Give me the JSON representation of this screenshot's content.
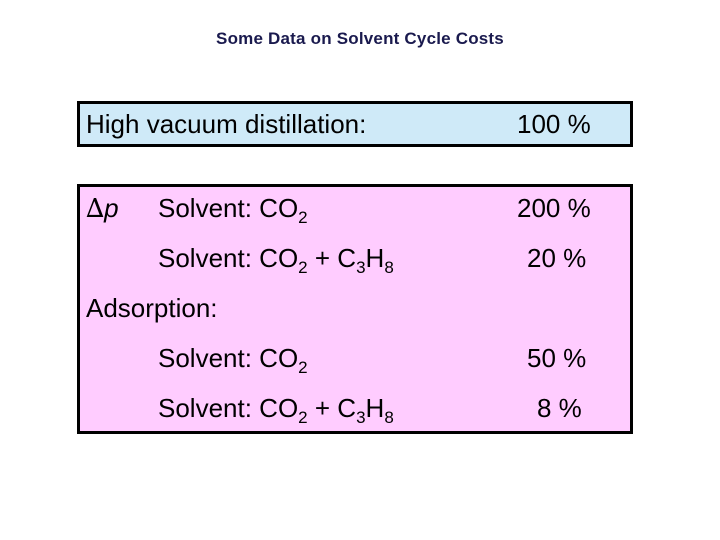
{
  "title": "Some Data on Solvent Cycle Costs",
  "colors": {
    "top_box_fill": "#cfeaf8",
    "main_box_fill": "#ffccff",
    "border": "#000000",
    "title_text": "#1a1a4e"
  },
  "top_box": {
    "label": "High vacuum distillation:",
    "value": "100 %"
  },
  "delta_p": {
    "symbol": "∆",
    "variable": "p"
  },
  "rows": [
    {
      "solvent_label": "Solvent: CO",
      "co2_sub": "2",
      "plus": "",
      "c3": "",
      "c3_sub": "",
      "h": "",
      "h_sub": "",
      "value": "200 %"
    },
    {
      "solvent_label": "Solvent: CO",
      "co2_sub": "2",
      "plus": " + C",
      "c3": "",
      "c3_sub": "3",
      "h": "H",
      "h_sub": "8",
      "value": "20 %"
    }
  ],
  "adsorption": {
    "label": "Adsorption:",
    "rows": [
      {
        "solvent_label": "Solvent: CO",
        "co2_sub": "2",
        "plus": "",
        "c3_sub": "",
        "h": "",
        "h_sub": "",
        "value": "50 %"
      },
      {
        "solvent_label": "Solvent: CO",
        "co2_sub": "2",
        "plus": " + C",
        "c3_sub": "3",
        "h": "H",
        "h_sub": "8",
        "value": "8 %"
      }
    ]
  }
}
